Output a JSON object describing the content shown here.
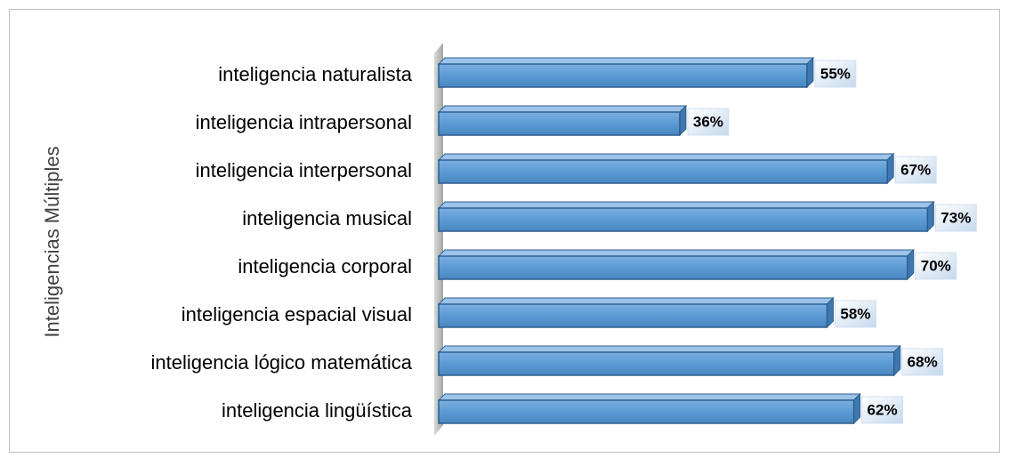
{
  "chart_data": {
    "type": "bar",
    "orientation": "horizontal",
    "y_axis_label": "Inteligencias Múltiples",
    "categories": [
      "inteligencia naturalista",
      "inteligencia intrapersonal",
      "inteligencia interpersonal",
      "inteligencia musical",
      "inteligencia corporal",
      "inteligencia espacial visual",
      "inteligencia lógico matemática",
      "inteligencia lingüística"
    ],
    "values": [
      55,
      36,
      67,
      73,
      70,
      58,
      68,
      62
    ],
    "value_labels": [
      "55%",
      "36%",
      "67%",
      "73%",
      "70%",
      "58%",
      "68%",
      "62%"
    ],
    "color": "#5b9bd5",
    "xlim": [
      0,
      80
    ]
  }
}
